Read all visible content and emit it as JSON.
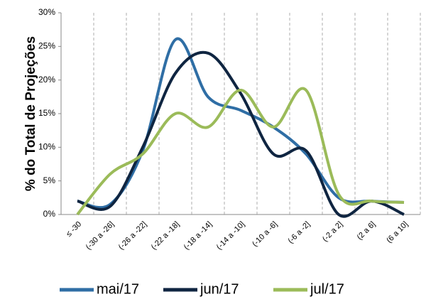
{
  "chart_data": {
    "type": "line",
    "y_label": "% do Total de Projeções",
    "categories": [
      "≤ -30",
      "(-30 a -26]",
      "(-26 a -22]",
      "(-22 a -18]",
      "(-18 a -14]",
      "(-14 a -10]",
      "(-10 a -6]",
      "(-6 a -2]",
      "(-2 a 2]",
      "(2 a 6]",
      "(6 a 10]"
    ],
    "series": [
      {
        "name": "mai/17",
        "color": "#2f6ea5",
        "values": [
          2,
          1.5,
          9.5,
          26,
          17.5,
          15.5,
          13,
          9,
          2.5,
          2,
          1.8
        ]
      },
      {
        "name": "jun/17",
        "color": "#0f2541",
        "values": [
          2,
          1.2,
          10,
          21,
          24,
          18,
          9,
          9.5,
          0,
          2,
          0
        ]
      },
      {
        "name": "jul/17",
        "color": "#9bbb59",
        "values": [
          0,
          6,
          9,
          15,
          13,
          18.5,
          13,
          18.5,
          3,
          2,
          1.8
        ]
      }
    ],
    "ylim": [
      0,
      30
    ],
    "yticks": [
      {
        "value": 0,
        "label": "0%"
      },
      {
        "value": 5,
        "label": "5%"
      },
      {
        "value": 10,
        "label": "10%"
      },
      {
        "value": 15,
        "label": "15%"
      },
      {
        "value": 20,
        "label": "20%"
      },
      {
        "value": 25,
        "label": "25%"
      },
      {
        "value": 30,
        "label": "30%"
      }
    ],
    "grid": true,
    "legend": "bottom"
  }
}
